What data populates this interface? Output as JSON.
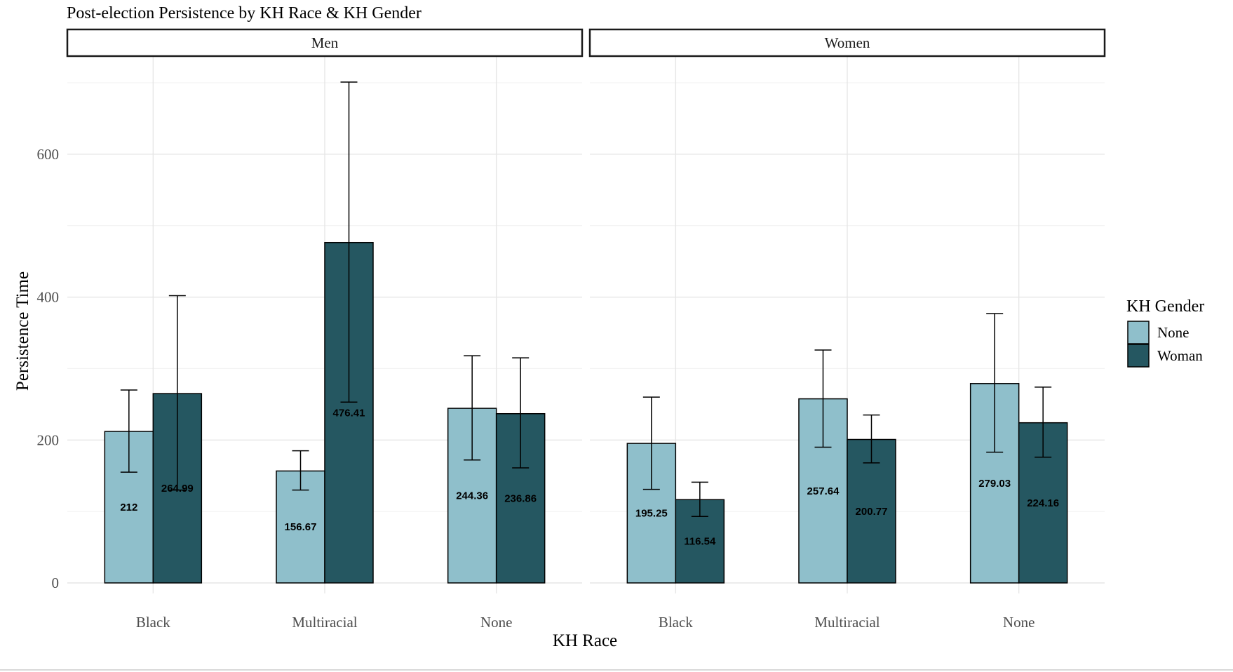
{
  "chart_data": {
    "type": "bar",
    "title": "Post-election Persistence by KH Race & KH Gender",
    "xlabel": "KH Race",
    "ylabel": "Persistence Time",
    "ylim": [
      0,
      700
    ],
    "yticks": [
      0,
      200,
      400,
      600
    ],
    "grid": true,
    "legend": {
      "title": "KH Gender",
      "position": "right",
      "entries": [
        "None",
        "Woman"
      ]
    },
    "colors": {
      "None": "#8fbfcb",
      "Woman": "#255761"
    },
    "categories": [
      "Black",
      "Multiracial",
      "None"
    ],
    "panels": [
      {
        "name": "Men",
        "series": [
          {
            "name": "None",
            "values": [
              212,
              156.67,
              244.36
            ],
            "ci_low": [
              155,
              130,
              172
            ],
            "ci_high": [
              270,
              185,
              318
            ],
            "labels": [
              "212",
              "156.67",
              "244.36"
            ]
          },
          {
            "name": "Woman",
            "values": [
              264.99,
              476.41,
              236.86
            ],
            "ci_low": [
              130,
              253,
              161
            ],
            "ci_high": [
              402,
              701,
              315
            ],
            "labels": [
              "264.99",
              "476.41",
              "236.86"
            ]
          }
        ]
      },
      {
        "name": "Women",
        "series": [
          {
            "name": "None",
            "values": [
              195.25,
              257.64,
              279.03
            ],
            "ci_low": [
              131,
              190,
              183
            ],
            "ci_high": [
              260,
              326,
              377
            ],
            "labels": [
              "195.25",
              "257.64",
              "279.03"
            ]
          },
          {
            "name": "Woman",
            "values": [
              116.54,
              200.77,
              224.16
            ],
            "ci_low": [
              93,
              168,
              176
            ],
            "ci_high": [
              141,
              235,
              274
            ],
            "labels": [
              "116.54",
              "200.77",
              "224.16"
            ]
          }
        ]
      }
    ]
  }
}
